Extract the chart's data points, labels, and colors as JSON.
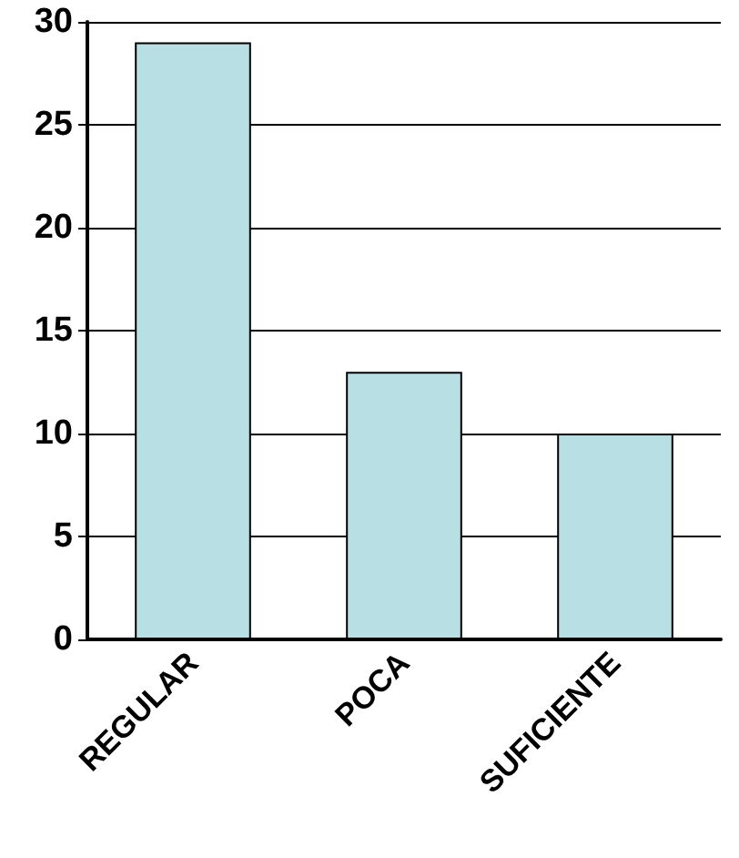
{
  "chart_data": {
    "type": "bar",
    "categories": [
      "REGULAR",
      "POCA",
      "SUFICIENTE"
    ],
    "values": [
      29,
      13,
      10
    ],
    "color": "#b8e0e4",
    "ylim": [
      0,
      30
    ],
    "yticks": [
      0,
      5,
      10,
      15,
      20,
      25,
      30
    ],
    "grid": "y"
  }
}
